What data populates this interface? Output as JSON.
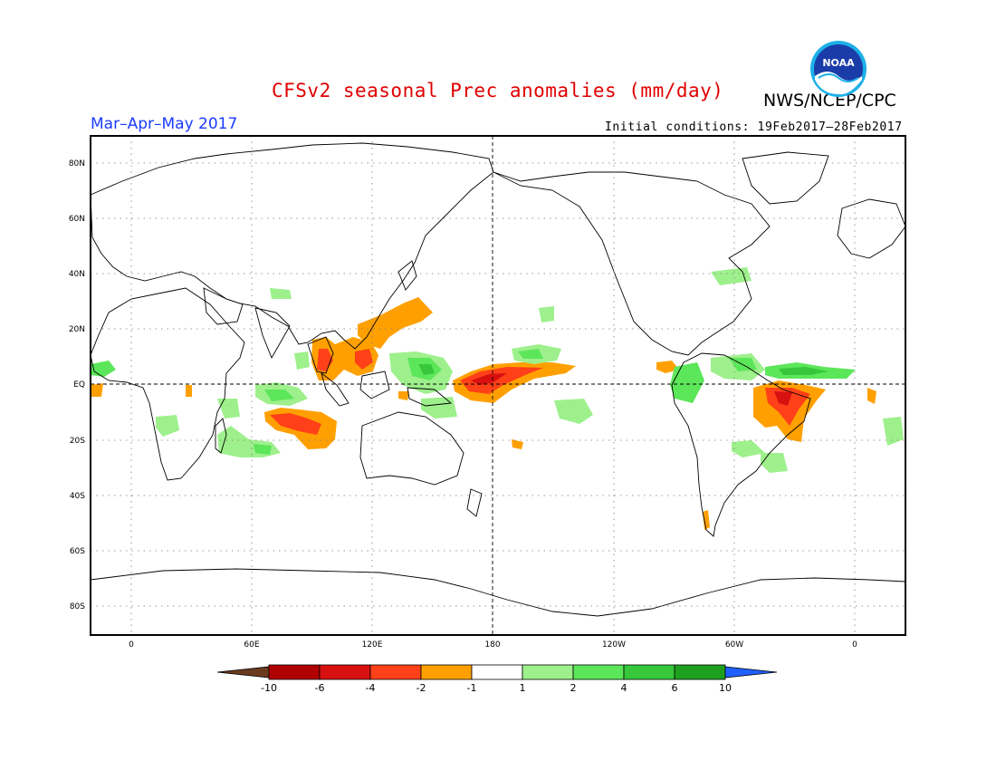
{
  "header": {
    "title": "CFSv2 seasonal Prec anomalies (mm/day)",
    "agency": "NWS/NCEP/CPC",
    "season": "Mar–Apr–May 2017",
    "initial_conditions": "Initial conditions: 19Feb2017–28Feb2017",
    "logo_text": "NOAA"
  },
  "map": {
    "lat_labels": [
      "80N",
      "60N",
      "40N",
      "20N",
      "EQ",
      "20S",
      "40S",
      "60S",
      "80S"
    ],
    "lon_labels": [
      "0",
      "60E",
      "120E",
      "180",
      "120W",
      "60W",
      "0"
    ],
    "colors": {
      "dry_extreme": "#6b3b1f",
      "dry_10": "#b00000",
      "dry_6": "#d81010",
      "dry_4": "#ff4018",
      "dry_2": "#ffa000",
      "neutral": "#ffffff",
      "wet_1": "#9ef08c",
      "wet_2": "#5ce65a",
      "wet_4": "#36c83a",
      "wet_6": "#1ea01e",
      "wet_extreme": "#2060ff"
    }
  },
  "colorbar": {
    "tick_labels": [
      "-10",
      "-6",
      "-4",
      "-2",
      "-1",
      "1",
      "2",
      "4",
      "6",
      "10"
    ]
  }
}
